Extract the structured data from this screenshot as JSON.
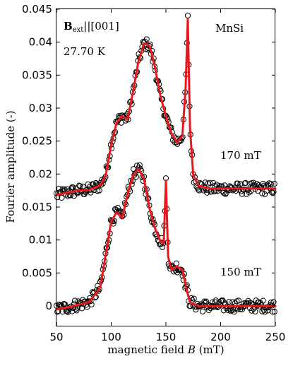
{
  "chart_data": {
    "type": "line",
    "xlabel_prefix": "magnetic field ",
    "xlabel_var": "B",
    "xlabel_suffix": " (mT)",
    "ylabel": "Fourier amplitude (-)",
    "xlim": [
      50,
      250
    ],
    "ylim": [
      -0.003,
      0.045
    ],
    "x_ticks": [
      50,
      100,
      150,
      200,
      250
    ],
    "x_tick_labels": [
      "50",
      "100",
      "150",
      "200",
      "250"
    ],
    "y_ticks": [
      0,
      0.005,
      0.01,
      0.015,
      0.02,
      0.025,
      0.03,
      0.035,
      0.04,
      0.045
    ],
    "y_tick_labels": [
      "0",
      "0.005",
      "0.01",
      "0.015",
      "0.02",
      "0.025",
      "0.03",
      "0.035",
      "0.04",
      "0.045"
    ],
    "grid": false,
    "annotations": {
      "field_label_main": "B",
      "field_label_sub": "ext",
      "field_label_tail": "||[001]",
      "temperature": "27.70 K",
      "sample": "MnSi",
      "upper_curve_label": "170 mT",
      "lower_curve_label": "150 mT"
    },
    "colors": {
      "data_markers": "#000000",
      "fit_line": "#e8191c"
    },
    "series": [
      {
        "curve_label": "170 mT",
        "marker": "open-circle",
        "x": [
          50,
          60,
          70,
          80,
          90,
          95,
          100,
          105,
          110,
          115,
          120,
          125,
          130,
          135,
          140,
          145,
          150,
          155,
          160,
          165,
          168,
          170,
          172,
          175,
          180,
          190,
          200,
          210,
          220,
          230,
          240,
          250
        ],
        "y": [
          0.0168,
          0.0172,
          0.0175,
          0.0176,
          0.0183,
          0.0198,
          0.0245,
          0.0278,
          0.0288,
          0.0283,
          0.0325,
          0.0372,
          0.0398,
          0.0395,
          0.0362,
          0.0318,
          0.0288,
          0.0262,
          0.0248,
          0.0258,
          0.033,
          0.0435,
          0.027,
          0.0198,
          0.0182,
          0.0178,
          0.0178,
          0.0178,
          0.0178,
          0.0178,
          0.0178,
          0.0178
        ]
      },
      {
        "curve_label": "150 mT",
        "marker": "open-circle",
        "x": [
          50,
          60,
          70,
          80,
          90,
          95,
          100,
          105,
          110,
          115,
          120,
          125,
          130,
          135,
          140,
          145,
          148,
          150,
          152,
          155,
          160,
          165,
          168,
          172,
          180,
          190,
          200,
          210,
          220,
          230,
          240,
          250
        ],
        "y": [
          -0.0005,
          -0.0002,
          0.0002,
          0.0006,
          0.0028,
          0.0078,
          0.0128,
          0.0142,
          0.0133,
          0.017,
          0.0198,
          0.0208,
          0.0192,
          0.0148,
          0.0118,
          0.0098,
          0.0095,
          0.019,
          0.0075,
          0.0055,
          0.006,
          0.0055,
          0.0032,
          0.0005,
          0.0,
          0.0,
          0.0,
          0.0,
          0.0,
          0.0,
          0.0,
          0.0
        ]
      }
    ]
  }
}
